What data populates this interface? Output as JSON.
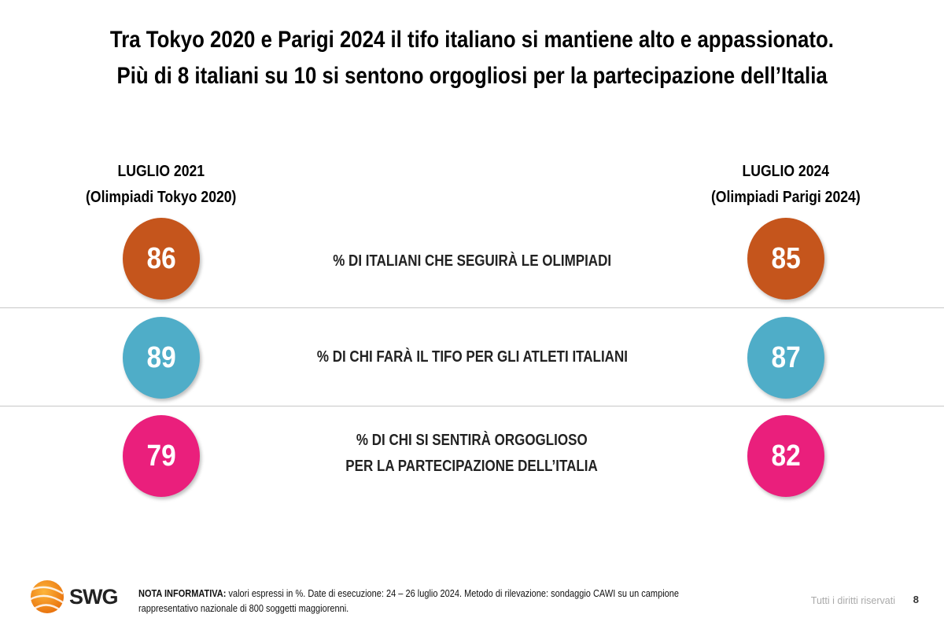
{
  "title": {
    "line1": "Tra Tokyo 2020 e Parigi 2024 il tifo italiano si mantiene alto e appassionato.",
    "line2": "Più di 8 italiani su 10 si sentono orgogliosi per la partecipazione dell’Italia"
  },
  "columns": [
    {
      "period": "LUGLIO 2021",
      "event": "(Olimpiadi Tokyo 2020)"
    },
    {
      "period": "LUGLIO 2024",
      "event": "(Olimpiadi Parigi 2024)"
    }
  ],
  "rows": [
    {
      "label_lines": [
        "% DI ITALIANI CHE SEGUIRÀ LE OLIMPIADI"
      ],
      "v2021": "86",
      "v2024": "85",
      "color": "#C5551C"
    },
    {
      "label_lines": [
        "% DI CHI FARÀ IL TIFO PER GLI ATLETI ITALIANI"
      ],
      "v2021": "89",
      "v2024": "87",
      "color": "#4FADC8"
    },
    {
      "label_lines": [
        "% DI CHI SI SENTIRÀ ORGOGLIOSO",
        "PER LA PARTECIPAZIONE DELL’ITALIA"
      ],
      "v2021": "79",
      "v2024": "82",
      "color": "#EA1F7C"
    }
  ],
  "footer": {
    "logo": "SWG",
    "note_label": "NOTA INFORMATIVA:",
    "note_line1": " valori espressi in %. Date di esecuzione: 24 – 26 luglio 2024. Metodo di rilevazione: sondaggio CAWI su un campione",
    "note_line2": "rappresentativo nazionale di 800 soggetti maggiorenni.",
    "rights": "Tutti i diritti riservati",
    "page": "8"
  }
}
